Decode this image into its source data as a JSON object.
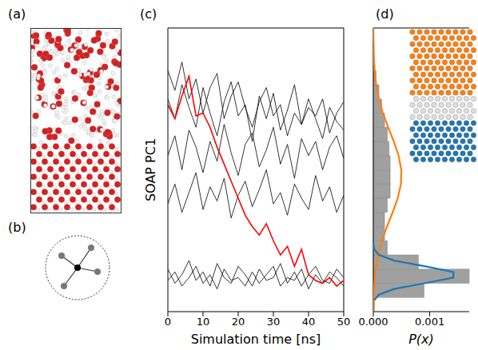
{
  "figure": {
    "panels": [
      {
        "label": "(a)"
      },
      {
        "label": "(b)"
      }
    ]
  },
  "chart_data": [
    {
      "type": "line",
      "title": "(c)",
      "x_label": "Simulation time [ns]",
      "y_label": "SOAP PC1",
      "x": [
        0,
        2,
        4,
        6,
        8,
        10,
        12,
        14,
        16,
        18,
        20,
        22,
        24,
        26,
        28,
        30,
        32,
        34,
        36,
        38,
        40,
        42,
        44,
        46,
        48,
        50
      ],
      "xlim": [
        0,
        50
      ],
      "xticks": [
        0,
        10,
        20,
        30,
        40,
        50
      ],
      "ylim": [
        0,
        10
      ],
      "tick_labels": "x",
      "series": [
        {
          "color": "#000000",
          "values": [
            7.5,
            6.8,
            8.0,
            7.2,
            6.5,
            7.9,
            7.0,
            6.2,
            7.4,
            8.1,
            6.9,
            7.3,
            6.0,
            7.6,
            6.8,
            7.7,
            6.4,
            7.1,
            8.0,
            6.6,
            7.2,
            6.9,
            7.5,
            6.3,
            7.0,
            7.4
          ]
        },
        {
          "color": "#000000",
          "values": [
            5.5,
            6.2,
            5.0,
            6.4,
            5.8,
            4.9,
            6.0,
            5.3,
            6.6,
            5.6,
            4.8,
            5.9,
            6.3,
            5.1,
            5.7,
            6.5,
            5.2,
            5.9,
            4.7,
            6.1,
            5.5,
            6.0,
            5.0,
            5.8,
            6.2,
            5.4
          ]
        },
        {
          "color": "#000000",
          "values": [
            3.8,
            4.5,
            3.5,
            4.2,
            4.9,
            3.6,
            4.4,
            3.9,
            4.7,
            3.3,
            4.1,
            4.6,
            3.7,
            4.3,
            5.0,
            3.8,
            4.2,
            3.4,
            4.5,
            4.0,
            3.6,
            4.8,
            3.9,
            4.4,
            3.5,
            4.1
          ]
        },
        {
          "color": "#000000",
          "values": [
            1.1,
            1.4,
            0.9,
            1.2,
            1.6,
            1.0,
            1.3,
            0.8,
            1.5,
            1.1,
            1.2,
            0.9,
            1.4,
            1.0,
            1.3,
            1.6,
            0.9,
            1.2,
            1.1,
            1.5,
            0.8,
            1.3,
            1.0,
            1.4,
            1.2,
            0.9
          ]
        },
        {
          "color": "#000000",
          "values": [
            1.5,
            1.0,
            1.3,
            1.8,
            1.1,
            1.4,
            0.9,
            1.7,
            1.2,
            1.0,
            1.6,
            1.3,
            0.9,
            1.5,
            1.1,
            1.2,
            1.7,
            1.0,
            1.4,
            0.9,
            1.3,
            1.6,
            1.1,
            1.0,
            1.5,
            1.2
          ]
        },
        {
          "color": "#000000",
          "values": [
            8.5,
            7.8,
            8.8,
            7.5,
            8.2,
            7.0,
            7.9,
            8.4,
            6.8,
            7.6,
            8.1,
            7.2,
            6.5,
            7.4,
            7.9,
            6.9,
            7.3,
            6.2,
            7.0,
            6.6,
            7.5,
            6.8,
            6.1,
            7.2,
            6.7,
            6.4
          ]
        },
        {
          "color": "#ff0000",
          "values": [
            7.3,
            6.8,
            7.6,
            8.3,
            6.9,
            7.0,
            6.5,
            5.8,
            5.2,
            4.6,
            4.0,
            3.4,
            3.0,
            2.7,
            3.1,
            2.5,
            2.0,
            2.3,
            1.6,
            2.2,
            1.3,
            1.1,
            1.0,
            1.2,
            0.9,
            1.1
          ]
        }
      ]
    },
    {
      "type": "histogram",
      "title": "(d)",
      "x_label": "P(x)",
      "orientation": "horizontal",
      "color": "#a0a0a0",
      "bins": [
        0,
        0.5,
        1.0,
        1.5,
        2.0,
        2.5,
        3.0,
        3.5,
        4.0,
        4.5,
        5.0,
        5.5,
        6.0,
        6.5,
        7.0,
        7.5,
        8.0,
        8.5,
        9.0,
        9.5
      ],
      "counts": [
        2e-05,
        0.0009,
        0.0017,
        0.0008,
        0.00025,
        0.0002,
        0.0002,
        0.00025,
        0.0003,
        0.0003,
        0.0003,
        0.00028,
        0.00025,
        0.0002,
        0.00015,
        0.0001,
        5e-05,
        2e-05,
        1e-05
      ],
      "xlim": [
        0,
        0.0017
      ],
      "xticks": [
        {
          "value": 0,
          "label": "0.000"
        },
        {
          "value": 0.001,
          "label": "0.001"
        }
      ],
      "ylim": [
        0,
        10
      ],
      "tick_labels": "x",
      "series": [
        {
          "type": "line",
          "color": "#ff7f0e",
          "y": [
            0,
            0.5,
            1.0,
            1.5,
            2.0,
            2.5,
            3.0,
            3.5,
            4.0,
            4.5,
            5.0,
            5.5,
            6.0,
            6.5,
            7.0,
            7.5,
            8.0,
            8.5,
            9.0,
            9.5,
            10
          ],
          "values": [
            3e-06,
            8e-06,
            2e-05,
            4.4e-05,
            8.8e-05,
            0.000154,
            0.000243,
            0.000343,
            0.000434,
            0.00049,
            0.000496,
            0.000448,
            0.000363,
            0.000263,
            0.00017,
            9.9e-05,
            5.1e-05,
            2.4e-05,
            1e-05,
            4e-06,
            1e-06
          ]
        },
        {
          "type": "line",
          "color": "#1f77b4",
          "y": [
            0.4,
            0.6,
            0.8,
            1.0,
            1.2,
            1.4,
            1.6,
            1.8,
            2.0,
            2.2,
            2.4
          ],
          "values": [
            1.7e-05,
            0.0001,
            0.00037,
            0.00091,
            0.00142,
            0.00142,
            0.00091,
            0.00037,
            0.0001,
            1.7e-05,
            2e-06
          ]
        }
      ]
    }
  ]
}
